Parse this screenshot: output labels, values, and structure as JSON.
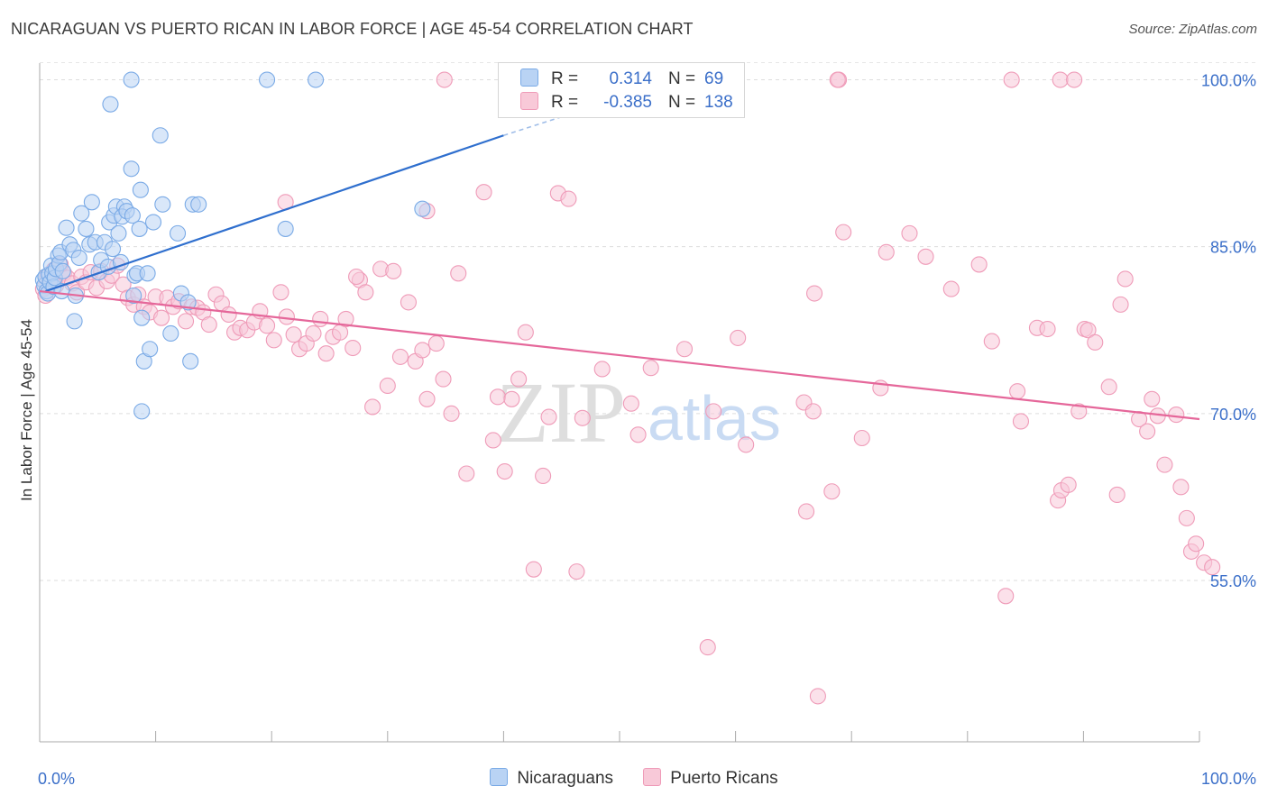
{
  "title": "NICARAGUAN VS PUERTO RICAN IN LABOR FORCE | AGE 45-54 CORRELATION CHART",
  "source": "Source: ZipAtlas.com",
  "watermark": {
    "zip": "ZIP",
    "atlas": "atlas"
  },
  "legend": {
    "r_label": "R =",
    "n_label": "N =",
    "rows": [
      {
        "r": "0.314",
        "n": "69"
      },
      {
        "r": "-0.385",
        "n": "138"
      }
    ]
  },
  "chart_data": {
    "type": "scatter",
    "ylabel": "In Labor Force | Age 45-54",
    "xlim": [
      0,
      100
    ],
    "ylim": [
      40.5,
      101.5
    ],
    "x_tick_labels": [
      "0.0%",
      "100.0%"
    ],
    "y_ticks": [
      55.0,
      70.0,
      85.0,
      100.0
    ],
    "y_tick_labels": [
      "55.0%",
      "70.0%",
      "85.0%",
      "100.0%"
    ],
    "grid": true,
    "series": [
      {
        "name": "Nicaraguans",
        "color": "#7aaae6",
        "fill": "#b9d3f4",
        "trend": {
          "x": [
            0.5,
            40
          ],
          "y": [
            81.0,
            95.0
          ],
          "dashed_to": [
            46,
            97.0
          ]
        },
        "points": [
          [
            0.3,
            82.0
          ],
          [
            0.4,
            81.5
          ],
          [
            0.5,
            82.3
          ],
          [
            0.6,
            81.0
          ],
          [
            0.7,
            80.8
          ],
          [
            0.8,
            82.5
          ],
          [
            0.9,
            81.8
          ],
          [
            1.0,
            83.3
          ],
          [
            1.1,
            82.6
          ],
          [
            1.2,
            81.4
          ],
          [
            1.3,
            82.2
          ],
          [
            1.4,
            83.0
          ],
          [
            1.6,
            84.2
          ],
          [
            1.7,
            83.5
          ],
          [
            1.8,
            84.5
          ],
          [
            1.9,
            81.0
          ],
          [
            2.0,
            82.8
          ],
          [
            2.3,
            86.7
          ],
          [
            2.6,
            85.2
          ],
          [
            2.9,
            84.7
          ],
          [
            3.1,
            80.6
          ],
          [
            3.0,
            78.3
          ],
          [
            3.4,
            84.0
          ],
          [
            3.6,
            88.0
          ],
          [
            4.0,
            86.6
          ],
          [
            4.3,
            85.2
          ],
          [
            4.5,
            89.0
          ],
          [
            4.8,
            85.4
          ],
          [
            5.1,
            82.7
          ],
          [
            5.3,
            83.8
          ],
          [
            5.6,
            85.4
          ],
          [
            5.9,
            83.2
          ],
          [
            6.0,
            87.2
          ],
          [
            6.3,
            84.8
          ],
          [
            6.1,
            97.8
          ],
          [
            6.4,
            87.8
          ],
          [
            6.6,
            88.6
          ],
          [
            6.8,
            86.2
          ],
          [
            7.0,
            83.6
          ],
          [
            7.3,
            88.6
          ],
          [
            7.1,
            87.7
          ],
          [
            7.5,
            88.2
          ],
          [
            7.9,
            92.0
          ],
          [
            8.2,
            82.4
          ],
          [
            8.4,
            82.6
          ],
          [
            8.1,
            80.6
          ],
          [
            8.0,
            87.8
          ],
          [
            8.6,
            86.6
          ],
          [
            8.8,
            78.6
          ],
          [
            9.0,
            74.7
          ],
          [
            9.3,
            82.6
          ],
          [
            9.5,
            75.8
          ],
          [
            9.8,
            87.2
          ],
          [
            10.4,
            95.0
          ],
          [
            10.6,
            88.8
          ],
          [
            8.7,
            90.1
          ],
          [
            11.3,
            77.2
          ],
          [
            11.9,
            86.2
          ],
          [
            12.2,
            80.8
          ],
          [
            12.8,
            80.0
          ],
          [
            13.0,
            74.7
          ],
          [
            13.2,
            88.8
          ],
          [
            13.7,
            88.8
          ],
          [
            8.8,
            70.2
          ],
          [
            7.9,
            100.0
          ],
          [
            19.6,
            100.0
          ],
          [
            23.8,
            100.0
          ],
          [
            21.2,
            86.6
          ],
          [
            33.0,
            88.4
          ]
        ]
      },
      {
        "name": "Puerto Ricans",
        "color": "#ef9bb8",
        "fill": "#f8c9d8",
        "trend": {
          "x": [
            0,
            100
          ],
          "y": [
            81.0,
            69.5
          ]
        },
        "points": [
          [
            0.3,
            81.2
          ],
          [
            0.5,
            80.6
          ],
          [
            0.7,
            82.4
          ],
          [
            0.9,
            81.8
          ],
          [
            1.2,
            82.9
          ],
          [
            1.4,
            81.5
          ],
          [
            1.8,
            83.4
          ],
          [
            2.1,
            82.6
          ],
          [
            2.4,
            82.2
          ],
          [
            2.8,
            81.7
          ],
          [
            3.2,
            80.9
          ],
          [
            3.6,
            82.3
          ],
          [
            4.0,
            81.8
          ],
          [
            4.4,
            82.7
          ],
          [
            4.9,
            81.3
          ],
          [
            5.3,
            82.8
          ],
          [
            5.8,
            81.9
          ],
          [
            6.2,
            82.4
          ],
          [
            6.7,
            83.3
          ],
          [
            7.2,
            81.6
          ],
          [
            7.6,
            80.4
          ],
          [
            8.1,
            79.8
          ],
          [
            8.5,
            80.7
          ],
          [
            9.0,
            79.6
          ],
          [
            9.5,
            79.1
          ],
          [
            10.0,
            80.5
          ],
          [
            10.5,
            78.6
          ],
          [
            11.0,
            80.4
          ],
          [
            11.5,
            79.6
          ],
          [
            12.0,
            80.1
          ],
          [
            12.6,
            78.3
          ],
          [
            13.1,
            79.6
          ],
          [
            13.6,
            79.5
          ],
          [
            14.1,
            79.1
          ],
          [
            14.6,
            78.0
          ],
          [
            15.2,
            80.7
          ],
          [
            15.7,
            79.9
          ],
          [
            16.3,
            78.9
          ],
          [
            16.8,
            77.3
          ],
          [
            17.3,
            77.7
          ],
          [
            17.9,
            77.5
          ],
          [
            18.5,
            78.2
          ],
          [
            19.0,
            79.2
          ],
          [
            19.6,
            77.9
          ],
          [
            20.2,
            76.6
          ],
          [
            20.8,
            80.9
          ],
          [
            21.3,
            78.7
          ],
          [
            21.9,
            77.1
          ],
          [
            22.4,
            75.8
          ],
          [
            23.0,
            76.3
          ],
          [
            23.6,
            77.2
          ],
          [
            24.2,
            78.5
          ],
          [
            24.7,
            75.4
          ],
          [
            25.3,
            76.9
          ],
          [
            25.9,
            77.3
          ],
          [
            26.4,
            78.5
          ],
          [
            27.0,
            75.9
          ],
          [
            27.6,
            82.0
          ],
          [
            28.1,
            80.9
          ],
          [
            28.7,
            70.6
          ],
          [
            29.4,
            83.0
          ],
          [
            30.0,
            72.5
          ],
          [
            30.5,
            82.8
          ],
          [
            31.1,
            75.1
          ],
          [
            31.8,
            80.0
          ],
          [
            32.4,
            74.7
          ],
          [
            33.0,
            75.7
          ],
          [
            33.4,
            71.3
          ],
          [
            34.2,
            76.3
          ],
          [
            34.8,
            73.1
          ],
          [
            35.5,
            70.0
          ],
          [
            36.1,
            82.6
          ],
          [
            36.8,
            64.6
          ],
          [
            38.3,
            89.9
          ],
          [
            39.1,
            67.6
          ],
          [
            39.5,
            71.5
          ],
          [
            40.1,
            64.8
          ],
          [
            40.7,
            71.3
          ],
          [
            41.3,
            73.1
          ],
          [
            41.9,
            77.3
          ],
          [
            42.6,
            56.0
          ],
          [
            43.4,
            64.4
          ],
          [
            43.9,
            69.7
          ],
          [
            44.7,
            89.8
          ],
          [
            45.6,
            89.3
          ],
          [
            46.3,
            55.8
          ],
          [
            46.8,
            69.6
          ],
          [
            48.5,
            74.0
          ],
          [
            51.0,
            70.9
          ],
          [
            51.6,
            68.1
          ],
          [
            52.7,
            74.1
          ],
          [
            55.6,
            75.8
          ],
          [
            57.6,
            49.0
          ],
          [
            58.1,
            70.2
          ],
          [
            60.2,
            76.8
          ],
          [
            60.9,
            67.2
          ],
          [
            65.9,
            71.0
          ],
          [
            66.7,
            70.2
          ],
          [
            67.1,
            44.6
          ],
          [
            66.1,
            61.2
          ],
          [
            66.8,
            80.8
          ],
          [
            68.3,
            63.0
          ],
          [
            69.3,
            86.3
          ],
          [
            70.9,
            67.8
          ],
          [
            72.5,
            72.3
          ],
          [
            73.0,
            84.5
          ],
          [
            75.0,
            86.2
          ],
          [
            76.4,
            84.1
          ],
          [
            78.6,
            81.2
          ],
          [
            81.0,
            83.4
          ],
          [
            82.1,
            76.5
          ],
          [
            83.3,
            53.6
          ],
          [
            84.3,
            72.0
          ],
          [
            84.6,
            69.3
          ],
          [
            86.0,
            77.7
          ],
          [
            86.9,
            77.6
          ],
          [
            87.8,
            62.2
          ],
          [
            88.1,
            63.1
          ],
          [
            88.7,
            63.6
          ],
          [
            89.6,
            70.2
          ],
          [
            90.1,
            77.6
          ],
          [
            90.4,
            77.5
          ],
          [
            91.0,
            76.4
          ],
          [
            92.2,
            72.4
          ],
          [
            92.9,
            62.7
          ],
          [
            93.2,
            79.8
          ],
          [
            93.6,
            82.1
          ],
          [
            94.8,
            69.5
          ],
          [
            95.5,
            68.4
          ],
          [
            95.9,
            71.3
          ],
          [
            96.4,
            69.8
          ],
          [
            97.0,
            65.4
          ],
          [
            98.0,
            69.9
          ],
          [
            98.4,
            63.4
          ],
          [
            98.9,
            60.6
          ],
          [
            99.3,
            57.6
          ],
          [
            99.7,
            58.3
          ],
          [
            100.4,
            56.6
          ],
          [
            101.1,
            56.2
          ],
          [
            88.0,
            100.0
          ],
          [
            89.2,
            100.0
          ],
          [
            68.9,
            100.0
          ],
          [
            68.8,
            100.0
          ],
          [
            34.9,
            100.0
          ],
          [
            83.8,
            100.0
          ],
          [
            27.3,
            82.3
          ],
          [
            21.2,
            89.0
          ],
          [
            33.4,
            88.2
          ]
        ]
      }
    ]
  }
}
